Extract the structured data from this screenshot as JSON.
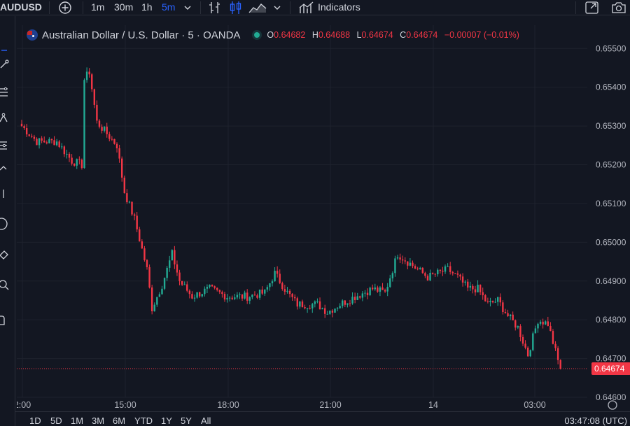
{
  "toolbar": {
    "symbol": "AUDUSD",
    "intervals": [
      "1m",
      "30m",
      "1h",
      "5m"
    ],
    "active_interval": "5m",
    "indicators_label": "Indicators",
    "colors": {
      "active": "#2962ff",
      "text": "#d1d4dc"
    }
  },
  "legend": {
    "title": "Australian Dollar / U.S. Dollar · 5 · OANDA",
    "o_label": "O",
    "o_value": "0.64682",
    "h_label": "H",
    "h_value": "0.64688",
    "l_label": "L",
    "l_value": "0.64674",
    "c_label": "C",
    "c_value": "0.64674",
    "change": "−0.00007 (−0.01%)"
  },
  "bottom": {
    "ranges": [
      "1D",
      "5D",
      "1M",
      "3M",
      "6M",
      "YTD",
      "1Y",
      "5Y",
      "All"
    ],
    "clock": "03:47:08 (UTC)"
  },
  "chart_data": {
    "type": "candlestick",
    "title": "Australian Dollar / U.S. Dollar · 5 · OANDA",
    "y_ticks": [
      "0.65500",
      "0.65400",
      "0.65300",
      "0.65200",
      "0.65100",
      "0.65000",
      "0.64900",
      "0.64800",
      "0.64700",
      "0.64600"
    ],
    "ylim": [
      0.646,
      0.6556
    ],
    "x_ticks": [
      "2:00",
      "15:00",
      "18:00",
      "21:00",
      "14",
      "03:00"
    ],
    "last_price": "0.64674",
    "last_value": 0.64674,
    "colors": {
      "up": "#22ab94",
      "down": "#f23645",
      "grid": "#1e222d",
      "axis_text": "#b2b5be"
    },
    "anchors": [
      [
        0,
        0.653
      ],
      [
        6,
        0.6526
      ],
      [
        14,
        0.6526
      ],
      [
        20,
        0.6521
      ],
      [
        24,
        0.652
      ],
      [
        25,
        0.6542
      ],
      [
        27,
        0.6544
      ],
      [
        30,
        0.6531
      ],
      [
        34,
        0.6528
      ],
      [
        38,
        0.6525
      ],
      [
        41,
        0.6513
      ],
      [
        45,
        0.6506
      ],
      [
        50,
        0.6493
      ],
      [
        52,
        0.6483
      ],
      [
        56,
        0.6489
      ],
      [
        60,
        0.6497
      ],
      [
        63,
        0.649
      ],
      [
        68,
        0.6486
      ],
      [
        75,
        0.6488
      ],
      [
        82,
        0.6486
      ],
      [
        90,
        0.6486
      ],
      [
        97,
        0.6487
      ],
      [
        101,
        0.6492
      ],
      [
        106,
        0.6487
      ],
      [
        110,
        0.6484
      ],
      [
        118,
        0.6484
      ],
      [
        122,
        0.6482
      ],
      [
        127,
        0.6484
      ],
      [
        133,
        0.6486
      ],
      [
        140,
        0.6488
      ],
      [
        145,
        0.6487
      ],
      [
        150,
        0.6497
      ],
      [
        156,
        0.6494
      ],
      [
        162,
        0.6491
      ],
      [
        166,
        0.6492
      ],
      [
        170,
        0.6493
      ],
      [
        174,
        0.6491
      ],
      [
        178,
        0.6488
      ],
      [
        182,
        0.6488
      ],
      [
        186,
        0.6484
      ],
      [
        190,
        0.6485
      ],
      [
        194,
        0.6481
      ],
      [
        198,
        0.6478
      ],
      [
        202,
        0.6471
      ],
      [
        206,
        0.648
      ],
      [
        210,
        0.6479
      ],
      [
        215,
        0.6467
      ]
    ]
  }
}
